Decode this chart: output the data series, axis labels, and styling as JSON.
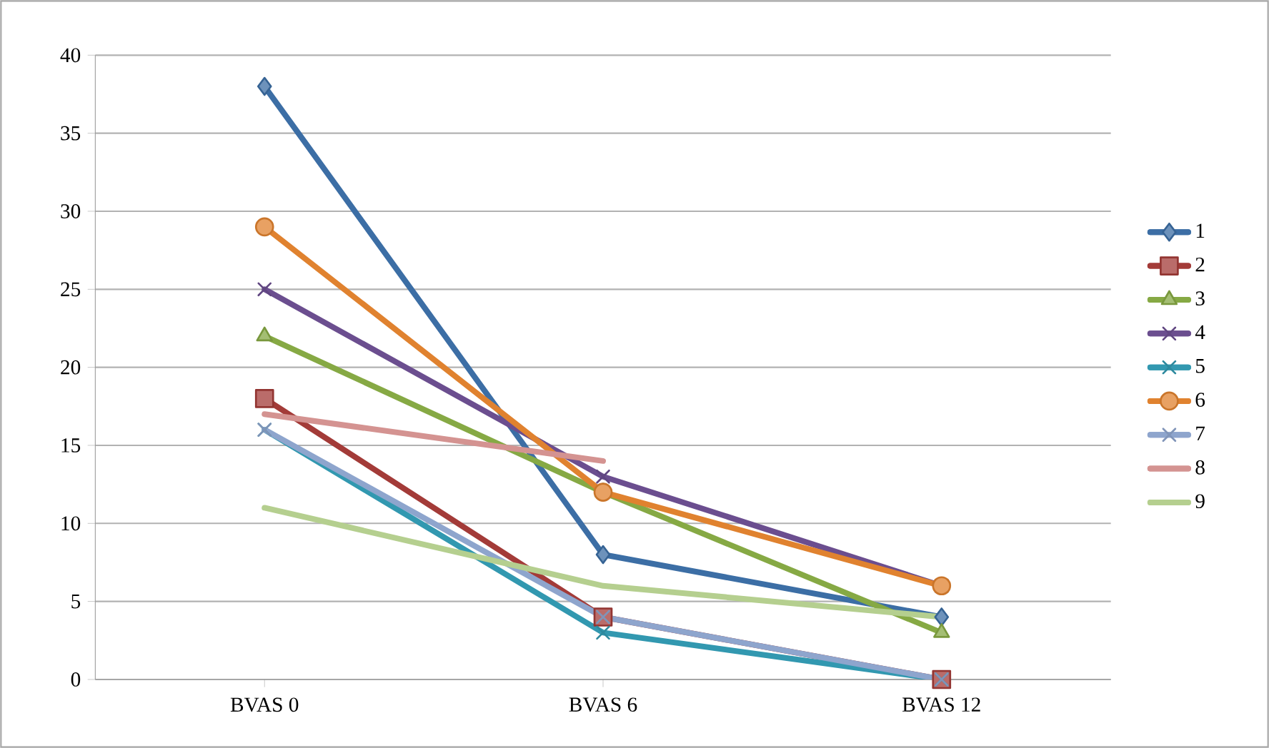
{
  "chart_data": {
    "type": "line",
    "categories": [
      "BVAS 0",
      "BVAS 6",
      "BVAS 12"
    ],
    "ylim": [
      0,
      40
    ],
    "yticks": [
      0,
      5,
      10,
      15,
      20,
      25,
      30,
      35,
      40
    ],
    "grid": "y",
    "legend": "right",
    "series": [
      {
        "name": "1",
        "color": "#3c6ea5",
        "marker": "diamond",
        "values": [
          38,
          8,
          4
        ]
      },
      {
        "name": "2",
        "color": "#a33b38",
        "marker": "square",
        "values": [
          18,
          4,
          0
        ]
      },
      {
        "name": "3",
        "color": "#86a944",
        "marker": "triangle",
        "values": [
          22,
          12,
          3
        ]
      },
      {
        "name": "4",
        "color": "#6b4e8f",
        "marker": "cross",
        "values": [
          25,
          13,
          6
        ]
      },
      {
        "name": "5",
        "color": "#3298b0",
        "marker": "cross",
        "values": [
          16,
          3,
          0
        ]
      },
      {
        "name": "6",
        "color": "#e0822f",
        "marker": "circle",
        "values": [
          29,
          12,
          6
        ]
      },
      {
        "name": "7",
        "color": "#8ea5cd",
        "marker": "cross",
        "values": [
          16,
          4,
          0
        ]
      },
      {
        "name": "8",
        "color": "#d49391",
        "marker": "none",
        "values": [
          17,
          14,
          null
        ]
      },
      {
        "name": "9",
        "color": "#b5cf8f",
        "marker": "none",
        "values": [
          11,
          6,
          4
        ]
      }
    ]
  }
}
